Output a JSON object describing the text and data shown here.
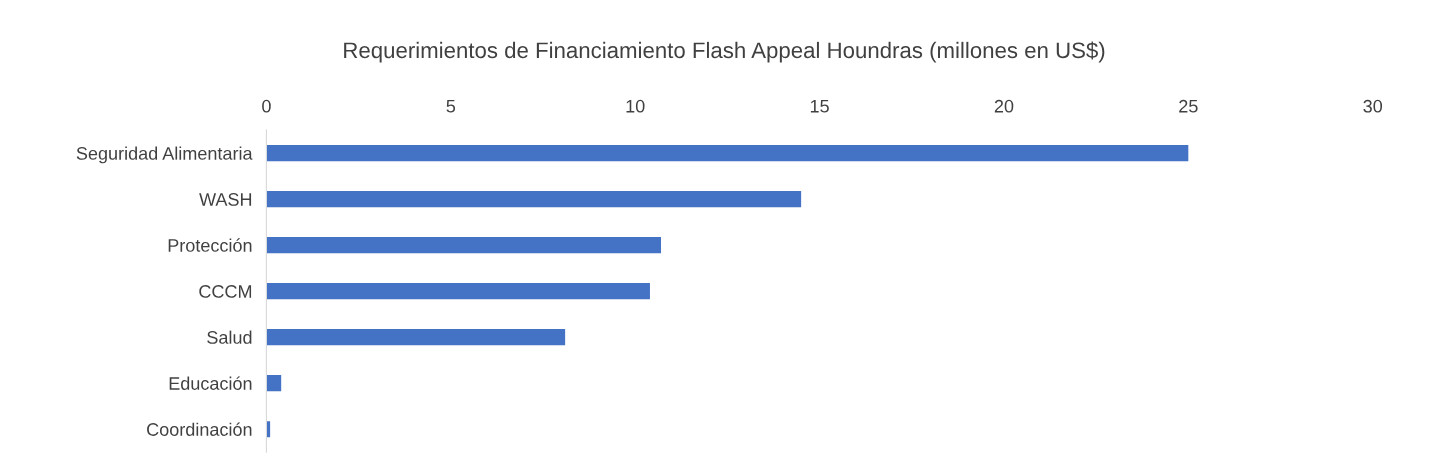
{
  "chart_data": {
    "type": "bar",
    "orientation": "horizontal",
    "title": "Requerimientos de Financiamiento Flash Appeal Houndras (millones en US$)",
    "categories": [
      "Seguridad Alimentaria",
      "WASH",
      "Protección",
      "CCCM",
      "Salud",
      "Educación",
      "Coordinación"
    ],
    "values": [
      25,
      14.5,
      10.7,
      10.4,
      8.1,
      0.4,
      0.1
    ],
    "color": "#4472c4",
    "xlim": [
      0,
      30
    ],
    "xticks": [
      0,
      5,
      10,
      15,
      20,
      25,
      30
    ],
    "grid": false
  }
}
